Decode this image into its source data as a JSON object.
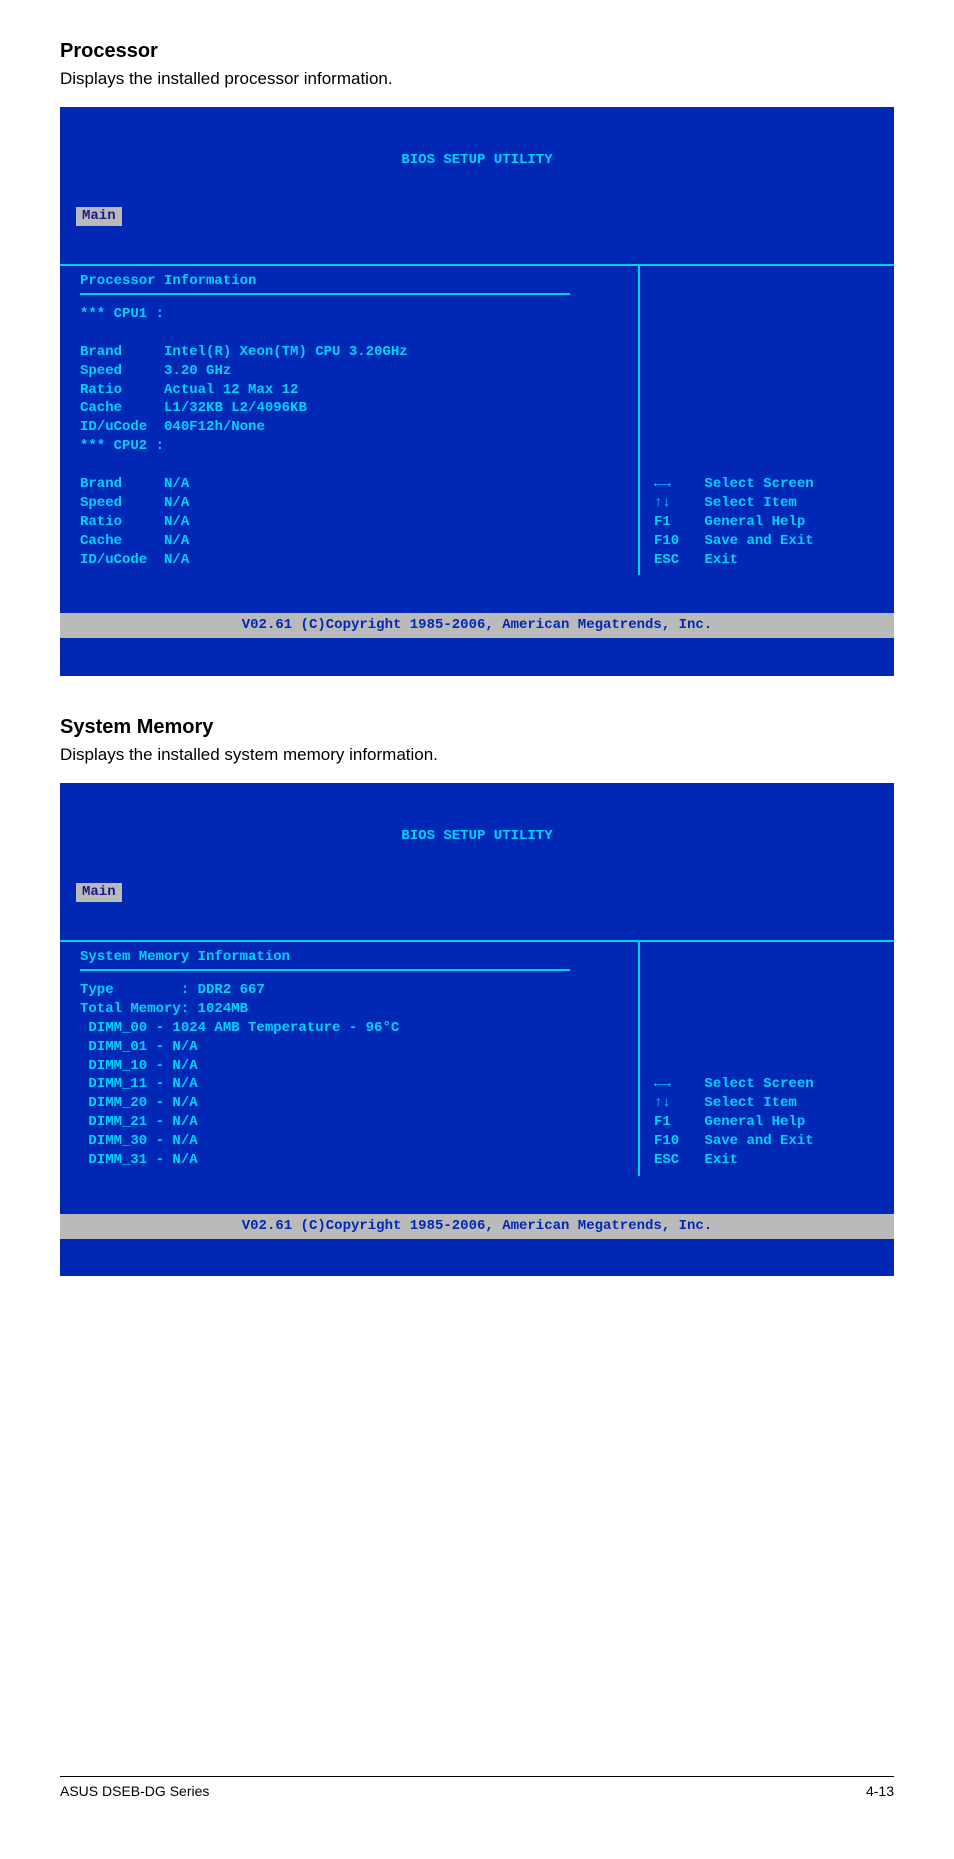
{
  "proc": {
    "heading": "Processor",
    "desc": "Displays the installed processor information.",
    "bios_title": "BIOS SETUP UTILITY",
    "tab": "Main",
    "section_title": "Processor Information",
    "cpu1_label": "*** CPU1 :",
    "rows1": {
      "r0": {
        "k": "Brand",
        "v": "Intel(R) Xeon(TM) CPU 3.20GHz"
      },
      "r1": {
        "k": "Speed",
        "v": "3.20 GHz"
      },
      "r2": {
        "k": "Ratio",
        "v": "Actual 12 Max 12"
      },
      "r3": {
        "k": "Cache",
        "v": "L1/32KB L2/4096KB"
      },
      "r4": {
        "k": "ID/uCode",
        "v": "040F12h/None"
      }
    },
    "cpu2_label": "*** CPU2 :",
    "rows2": {
      "r0": {
        "k": "Brand",
        "v": "N/A"
      },
      "r1": {
        "k": "Speed",
        "v": "N/A"
      },
      "r2": {
        "k": "Ratio",
        "v": "N/A"
      },
      "r3": {
        "k": "Cache",
        "v": "N/A"
      },
      "r4": {
        "k": "ID/uCode",
        "v": "N/A"
      }
    }
  },
  "mem": {
    "heading": "System Memory",
    "desc": "Displays the installed system memory information.",
    "bios_title": "BIOS SETUP UTILITY",
    "tab": "Main",
    "section_title": "System Memory Information",
    "row0": {
      "k": "Type",
      "v": ": DDR2 667"
    },
    "row1": "Total Memory: 1024MB",
    "row2": " DIMM_00 - 1024 AMB Temperature - 96°C",
    "row3": " DIMM_01 - N/A",
    "row4": " DIMM_10 - N/A",
    "row5": " DIMM_11 - N/A",
    "row6": " DIMM_20 - N/A",
    "row7": " DIMM_21 - N/A",
    "row8": " DIMM_30 - N/A",
    "row9": " DIMM_31 - N/A"
  },
  "help": {
    "r0": {
      "k": "←→",
      "v": "Select Screen"
    },
    "r1": {
      "k": "↑↓",
      "v": "Select Item"
    },
    "r2": {
      "k": "F1",
      "v": "General Help"
    },
    "r3": {
      "k": "F10",
      "v": "Save and Exit"
    },
    "r4": {
      "k": "ESC",
      "v": "Exit"
    }
  },
  "copyright": "V02.61 (C)Copyright 1985-2006, American Megatrends, Inc.",
  "footer": {
    "left": "ASUS DSEB-DG Series",
    "right": "4-13"
  }
}
